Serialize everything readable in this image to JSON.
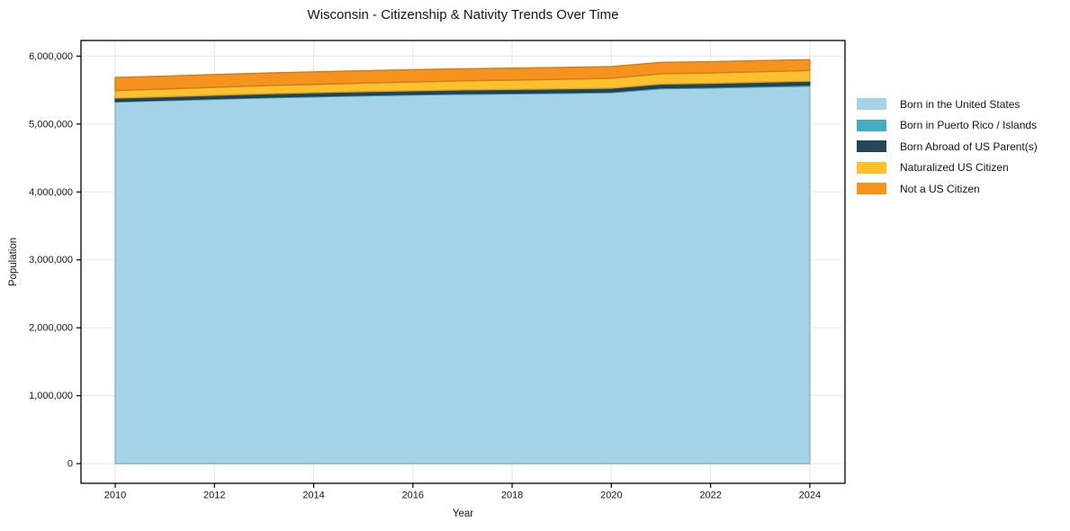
{
  "page": {
    "title": "Wisconsin - Citizenship & Nativity Trends Over Time"
  },
  "chart_data": {
    "type": "area",
    "stacked": true,
    "title": "Wisconsin - Citizenship & Nativity Trends Over Time",
    "xlabel": "Year",
    "ylabel": "Population",
    "grid": true,
    "legend_position": "right-outside",
    "x": [
      2010,
      2011,
      2012,
      2013,
      2014,
      2015,
      2016,
      2017,
      2018,
      2019,
      2020,
      2021,
      2022,
      2023,
      2024
    ],
    "series": [
      {
        "name": "Born in the United States",
        "color": "#a4d3e8",
        "values": [
          5325000,
          5345000,
          5365000,
          5385000,
          5400000,
          5415000,
          5428000,
          5438000,
          5445000,
          5452000,
          5462000,
          5520000,
          5530000,
          5545000,
          5560000
        ]
      },
      {
        "name": "Born in Puerto Rico / Islands",
        "color": "#41aec6",
        "values": [
          10000,
          10000,
          11000,
          11000,
          12000,
          12000,
          12000,
          13000,
          13000,
          13000,
          14000,
          15000,
          15000,
          16000,
          16000
        ]
      },
      {
        "name": "Born Abroad of US Parent(s)",
        "color": "#24465a",
        "values": [
          48000,
          48000,
          49000,
          50000,
          50000,
          51000,
          51000,
          52000,
          52000,
          53000,
          53000,
          55000,
          55000,
          56000,
          56000
        ]
      },
      {
        "name": "Naturalized US Citizen",
        "color": "#fcc12d",
        "values": [
          110000,
          113000,
          116000,
          119000,
          122000,
          125000,
          129000,
          133000,
          137000,
          141000,
          145000,
          150000,
          152000,
          154000,
          156000
        ]
      },
      {
        "name": "Not a US Citizen",
        "color": "#f6921e",
        "values": [
          192000,
          190000,
          188000,
          186000,
          184000,
          182000,
          180000,
          178000,
          176000,
          174000,
          172000,
          168000,
          166000,
          163000,
          160000
        ]
      }
    ],
    "x_ticks": [
      2010,
      2012,
      2014,
      2016,
      2018,
      2020,
      2022,
      2024
    ],
    "y_ticks": [
      0,
      1000000,
      2000000,
      3000000,
      4000000,
      5000000,
      6000000
    ],
    "y_tick_labels": [
      "0",
      "1,000,000",
      "2,000,000",
      "3,000,000",
      "4,000,000",
      "5,000,000",
      "6,000,000"
    ],
    "xlim": [
      2009.31,
      2024.71
    ],
    "ylim": [
      -290000,
      6230000
    ],
    "axis_color": "#000000",
    "grid_color": "#e7e7e7"
  }
}
